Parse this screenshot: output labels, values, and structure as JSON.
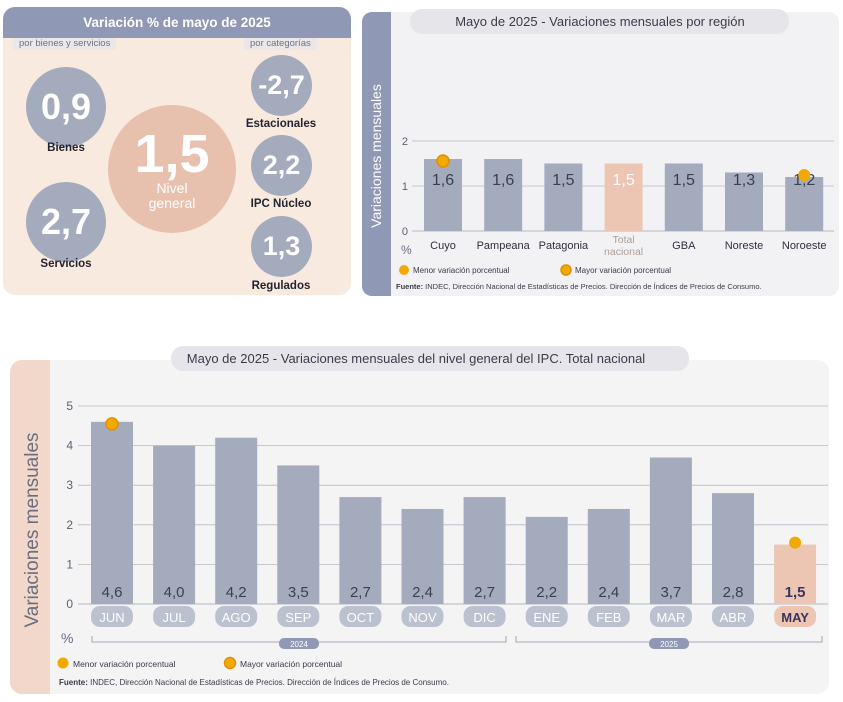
{
  "summary": {
    "title": "Variación % de mayo de 2025",
    "label_left": "por bienes y servicios",
    "label_right": "por categorías",
    "goods": {
      "value": "0,9",
      "label": "Bienes"
    },
    "services": {
      "value": "2,7",
      "label": "Servicios"
    },
    "general": {
      "value": "1,5",
      "label": "Nivel general"
    },
    "seasonal": {
      "value": "-2,7",
      "label": "Estacionales"
    },
    "core": {
      "value": "2,2",
      "label": "IPC Núcleo"
    },
    "regulated": {
      "value": "1,3",
      "label": "Regulados"
    }
  },
  "region_chart": {
    "title_prefix": "Mayo de 2025 - ",
    "title_main": "Variaciones mensuales por región",
    "legend_min": "Menor variación porcentual",
    "legend_max": "Mayor variación porcentual",
    "source_bold": "Fuente:",
    "source_text": " INDEC, Dirección Nacional de Estadísticas de Precios. Dirección de Índices de Precios de Consumo."
  },
  "monthly_chart": {
    "title_prefix": "Mayo de 2025 - ",
    "title_main": "Variaciones mensuales del nivel general del IPC. Total nacional",
    "year_2024": "2024",
    "year_2025": "2025",
    "legend_min": "Menor variación porcentual",
    "legend_max": "Mayor variación porcentual",
    "source_bold": "Fuente:",
    "source_text": " INDEC, Dirección Nacional de Estadísticas de Precios. Dirección de Índices de Precios de Consumo."
  },
  "colors": {
    "bar": "#a4abbd",
    "highlight": "#ecc6b3",
    "marker_min": "#f2a900",
    "marker_max": "#f2a900",
    "header": "#8f98b4"
  },
  "chart_data": [
    {
      "type": "bar",
      "categories": [
        "Cuyo",
        "Pampeana",
        "Patagonia",
        "Total nacional",
        "GBA",
        "Noreste",
        "Noroeste"
      ],
      "values": [
        1.6,
        1.6,
        1.5,
        1.5,
        1.5,
        1.3,
        1.2
      ],
      "value_labels": [
        "1,6",
        "1,6",
        "1,5",
        "1,5",
        "1,5",
        "1,3",
        "1,2"
      ],
      "highlight_index": 3,
      "max_index": 0,
      "min_index": 6,
      "ylabel": "Variaciones mensuales",
      "yunit": "%",
      "yticks": [
        0,
        1,
        2
      ],
      "ylim": [
        0,
        2
      ],
      "grid": true,
      "legend": "bottom-left"
    },
    {
      "type": "bar",
      "categories": [
        "JUN",
        "JUL",
        "AGO",
        "SEP",
        "OCT",
        "NOV",
        "DIC",
        "ENE",
        "FEB",
        "MAR",
        "ABR",
        "MAY"
      ],
      "values": [
        4.6,
        4.0,
        4.2,
        3.5,
        2.7,
        2.4,
        2.7,
        2.2,
        2.4,
        3.7,
        2.8,
        1.5
      ],
      "value_labels": [
        "4,6",
        "4,0",
        "4,2",
        "3,5",
        "2,7",
        "2,4",
        "2,7",
        "2,2",
        "2,4",
        "3,7",
        "2,8",
        "1,5"
      ],
      "highlight_index": 11,
      "max_index": 0,
      "min_index": 11,
      "ylabel": "Variaciones mensuales",
      "yunit": "%",
      "yticks": [
        0,
        1,
        2,
        3,
        4,
        5
      ],
      "ylim": [
        0,
        5
      ],
      "grid": true,
      "legend": "bottom-left"
    }
  ]
}
